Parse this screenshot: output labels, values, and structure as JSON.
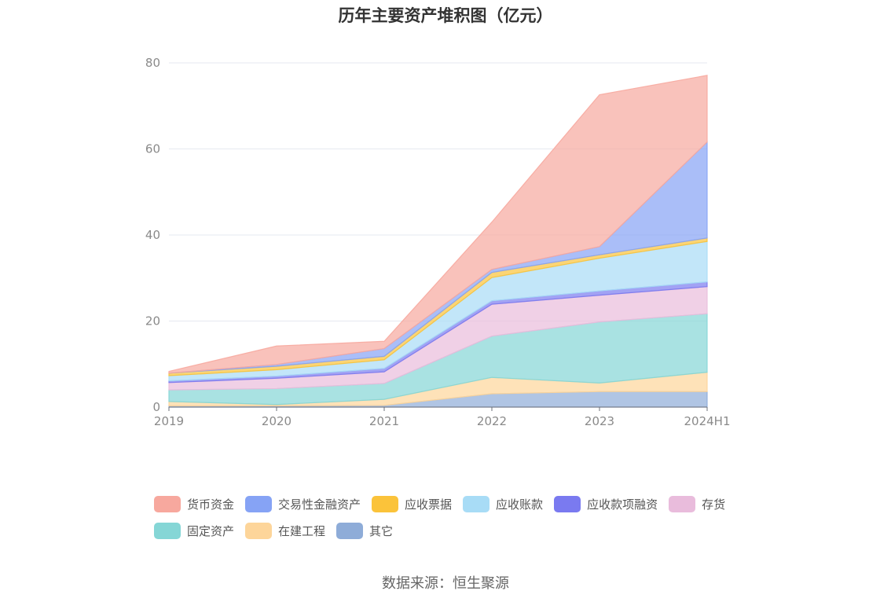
{
  "chart_data": {
    "type": "area",
    "stacked": true,
    "title": "历年主要资产堆积图（亿元）",
    "x": [
      "2019",
      "2020",
      "2021",
      "2022",
      "2023",
      "2024H1"
    ],
    "ylim": [
      0,
      80
    ],
    "yticks": [
      "0",
      "20",
      "40",
      "60",
      "80"
    ],
    "grid": true,
    "legend_position": "bottom",
    "series": [
      {
        "name": "其它",
        "color": "#8eacd8",
        "values": [
          0.3,
          0.3,
          0.4,
          3.1,
          3.6,
          3.6
        ]
      },
      {
        "name": "在建工程",
        "color": "#fdd59a",
        "values": [
          1.0,
          0.3,
          1.4,
          3.8,
          2.0,
          4.5
        ]
      },
      {
        "name": "固定资产",
        "color": "#85d6d6",
        "values": [
          2.7,
          3.7,
          3.7,
          9.6,
          14.2,
          13.6
        ]
      },
      {
        "name": "存货",
        "color": "#e9bcdc",
        "values": [
          1.7,
          2.4,
          2.7,
          7.4,
          6.2,
          6.3
        ]
      },
      {
        "name": "应收款项融资",
        "color": "#7a7af0",
        "values": [
          0.4,
          0.5,
          0.8,
          0.8,
          1.0,
          1.1
        ]
      },
      {
        "name": "应收账款",
        "color": "#a8dcf6",
        "values": [
          1.2,
          1.5,
          2.0,
          5.4,
          7.6,
          9.4
        ]
      },
      {
        "name": "应收票据",
        "color": "#fbc33a",
        "values": [
          0.6,
          0.8,
          0.8,
          1.2,
          0.8,
          0.8
        ]
      },
      {
        "name": "交易性金融资产",
        "color": "#86a3f5",
        "values": [
          0.0,
          0.4,
          1.8,
          0.7,
          1.9,
          22.3
        ]
      },
      {
        "name": "货币资金",
        "color": "#f7a89e",
        "values": [
          0.4,
          4.3,
          1.7,
          11.0,
          35.3,
          15.5
        ]
      }
    ]
  },
  "legend_items": [
    "货币资金",
    "交易性金融资产",
    "应收票据",
    "应收账款",
    "应收款项融资",
    "存货",
    "固定资产",
    "在建工程",
    "其它"
  ],
  "source": "数据来源：恒生聚源"
}
